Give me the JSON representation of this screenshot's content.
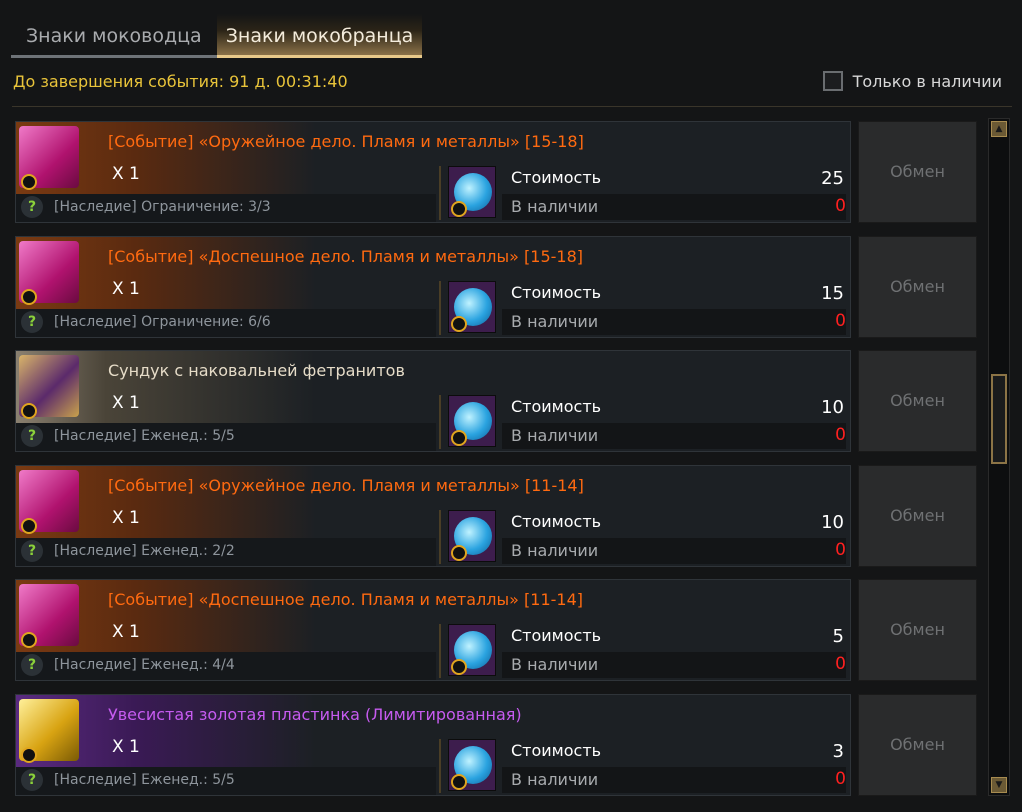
{
  "tabs": [
    {
      "label": "Знаки моководца",
      "active": false
    },
    {
      "label": "Знаки мокобранца",
      "active": true
    }
  ],
  "timer": "До завершения события: 91 д. 00:31:40",
  "only_in_stock": {
    "label": "Только в наличии",
    "checked": false
  },
  "colors": {
    "event": "#ff6a10",
    "normal": "#e6dcc8",
    "purple": "#c65bf0",
    "missing": "#ff2020",
    "timer": "#e9c43a"
  },
  "labels": {
    "cost": "Стоимость",
    "available": "В наличии",
    "exchange": "Обмен"
  },
  "items": [
    {
      "name": "[Событие] «Оружейное дело. Пламя и металлы» [15-18]",
      "qty": "X 1",
      "limit": "[Наследие] Ограничение: 3/3",
      "cost": "25",
      "available": "0",
      "icon": "pink-book-icon",
      "grade": "event"
    },
    {
      "name": "[Событие] «Доспешное дело. Пламя и металлы» [15-18]",
      "qty": "X 1",
      "limit": "[Наследие] Ограничение: 6/6",
      "cost": "15",
      "available": "0",
      "icon": "pink-book-icon",
      "grade": "event"
    },
    {
      "name": "Сундук с наковальней фетранитов",
      "qty": "X 1",
      "limit": "[Наследие] Еженед.: 5/5",
      "cost": "10",
      "available": "0",
      "icon": "chest-icon",
      "grade": "normal"
    },
    {
      "name": "[Событие] «Оружейное дело. Пламя и металлы» [11-14]",
      "qty": "X 1",
      "limit": "[Наследие] Еженед.: 2/2",
      "cost": "10",
      "available": "0",
      "icon": "pink-book-icon",
      "grade": "event"
    },
    {
      "name": "[Событие] «Доспешное дело. Пламя и металлы» [11-14]",
      "qty": "X 1",
      "limit": "[Наследие] Еженед.: 4/4",
      "cost": "5",
      "available": "0",
      "icon": "pink-book-icon",
      "grade": "event"
    },
    {
      "name": "Увесистая золотая пластинка (Лимитированная)",
      "qty": "X 1",
      "limit": "[Наследие] Еженед.: 5/5",
      "cost": "3",
      "available": "0",
      "icon": "gold-plate-icon",
      "grade": "purple"
    }
  ]
}
